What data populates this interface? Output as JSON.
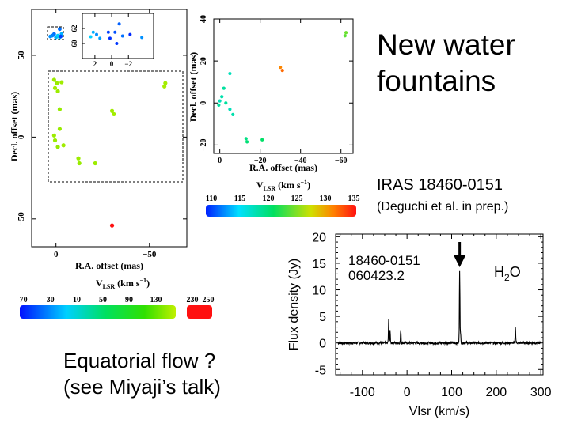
{
  "slide": {
    "title_line1": "New water",
    "title_line2": "fountains",
    "subtitle": "IRAS 18460-0151",
    "citation": "(Deguchi et al. in prep.)",
    "caption_line1": "Equatorial flow ?",
    "caption_line2": "(see Miyaji’s talk)"
  },
  "chart_data": [
    {
      "type": "scatter",
      "id": "map-large",
      "xlabel": "R.A. offset (mas)",
      "ylabel": "Decl. offset (mas)",
      "xlim": [
        13,
        -70
      ],
      "ylim": [
        -67,
        78
      ],
      "xticks": [
        {
          "v": 0,
          "label": "0"
        },
        {
          "v": -50,
          "label": "−50"
        }
      ],
      "yticks": [
        {
          "v": 50,
          "label": "50"
        },
        {
          "v": 0,
          "label": "0"
        },
        {
          "v": -50,
          "label": "−50"
        }
      ],
      "colorbar": {
        "label": "V",
        "label_sub": "LSR",
        "label_unit": "(km s",
        "label_exp": "−1",
        "label_close": ")",
        "ticks": [
          "-70",
          "-30",
          "10",
          "50",
          "90",
          "130",
          "230",
          "250"
        ],
        "ranges": [
          [
            -70,
            130
          ],
          [
            230,
            250
          ]
        ]
      },
      "points": [
        {
          "x": 1,
          "y": 35,
          "v": 120
        },
        {
          "x": 0.5,
          "y": 30,
          "v": 121
        },
        {
          "x": -1,
          "y": 28,
          "v": 120
        },
        {
          "x": -0.5,
          "y": 33,
          "v": 119
        },
        {
          "x": -3,
          "y": 33.5,
          "v": 121
        },
        {
          "x": -2,
          "y": 17,
          "v": 118
        },
        {
          "x": -2,
          "y": 5,
          "v": 119
        },
        {
          "x": 1,
          "y": 1,
          "v": 120
        },
        {
          "x": 0.5,
          "y": -2,
          "v": 119
        },
        {
          "x": -1,
          "y": -6,
          "v": 118
        },
        {
          "x": -4,
          "y": -5,
          "v": 121
        },
        {
          "x": -12,
          "y": -13,
          "v": 120
        },
        {
          "x": -12.5,
          "y": -16,
          "v": 119
        },
        {
          "x": -21,
          "y": -16,
          "v": 120
        },
        {
          "x": -30,
          "y": 16,
          "v": 121
        },
        {
          "x": -31,
          "y": 14,
          "v": 122
        },
        {
          "x": -58,
          "y": 31,
          "v": 123
        },
        {
          "x": -58.5,
          "y": 33,
          "v": 122
        },
        {
          "x": -30,
          "y": -54,
          "v": 240
        }
      ],
      "cluster": [
        {
          "x": 1,
          "y": 63,
          "v": -40
        },
        {
          "x": 2,
          "y": 62,
          "v": -35
        },
        {
          "x": 3,
          "y": 61.5,
          "v": -30
        },
        {
          "x": 0,
          "y": 61,
          "v": -20
        },
        {
          "x": -1,
          "y": 62,
          "v": -10
        },
        {
          "x": -2,
          "y": 61,
          "v": 0
        },
        {
          "x": -3,
          "y": 63,
          "v": -20
        },
        {
          "x": -2,
          "y": 66,
          "v": -40
        },
        {
          "x": -2.5,
          "y": 61.5,
          "v": -55
        }
      ]
    },
    {
      "type": "scatter",
      "id": "map-inset",
      "xlim": [
        3.5,
        -5
      ],
      "ylim": [
        58,
        64
      ],
      "xticks": [
        {
          "v": 2,
          "label": "2"
        },
        {
          "v": 0,
          "label": "0"
        },
        {
          "v": -2,
          "label": "−2"
        }
      ],
      "yticks": [
        {
          "v": 62,
          "label": "62"
        },
        {
          "v": 60,
          "label": "60"
        }
      ],
      "points": [
        {
          "x": 2.5,
          "y": 60.9,
          "v": -10
        },
        {
          "x": 2.2,
          "y": 61.5,
          "v": -20
        },
        {
          "x": 1.8,
          "y": 61.2,
          "v": -30
        },
        {
          "x": 1.4,
          "y": 60.7,
          "v": -25
        },
        {
          "x": 0.4,
          "y": 61.5,
          "v": -55
        },
        {
          "x": 0.2,
          "y": 60.7,
          "v": -60
        },
        {
          "x": -0.4,
          "y": 61.5,
          "v": -50
        },
        {
          "x": -0.9,
          "y": 62.6,
          "v": -45
        },
        {
          "x": -0.6,
          "y": 60.0,
          "v": -58
        },
        {
          "x": -1.3,
          "y": 61.0,
          "v": -40
        },
        {
          "x": -2.2,
          "y": 61.2,
          "v": -62
        },
        {
          "x": -3.6,
          "y": 60.8,
          "v": -30
        }
      ]
    },
    {
      "type": "scatter",
      "id": "map-zoom",
      "xlabel": "R.A. offset (mas)",
      "ylabel": "Decl. offset (mas)",
      "xlim": [
        3,
        -66
      ],
      "ylim": [
        -24,
        40
      ],
      "xticks": [
        {
          "v": 0,
          "label": "0"
        },
        {
          "v": -20,
          "label": "−20"
        },
        {
          "v": -40,
          "label": "−40"
        },
        {
          "v": -60,
          "label": "−60"
        }
      ],
      "yticks": [
        {
          "v": 40,
          "label": "40"
        },
        {
          "v": 20,
          "label": "20"
        },
        {
          "v": 0,
          "label": "0"
        },
        {
          "v": -20,
          "label": "−20"
        }
      ],
      "colorbar": {
        "label": "V",
        "label_sub": "LSR",
        "label_unit": "(km s",
        "label_exp": "−1",
        "label_close": ")",
        "ticks": [
          "110",
          "115",
          "120",
          "125",
          "130",
          "135"
        ],
        "range": [
          110,
          135
        ]
      },
      "points": [
        {
          "x": -62,
          "y": 32,
          "v": 124
        },
        {
          "x": -62.5,
          "y": 33.5,
          "v": 124.5
        },
        {
          "x": -30,
          "y": 17,
          "v": 131
        },
        {
          "x": -31,
          "y": 15.5,
          "v": 132
        },
        {
          "x": -5,
          "y": 14,
          "v": 118
        },
        {
          "x": -2,
          "y": 7,
          "v": 119
        },
        {
          "x": -1,
          "y": 3,
          "v": 118.5
        },
        {
          "x": 0,
          "y": 1,
          "v": 118
        },
        {
          "x": -3,
          "y": 0,
          "v": 119
        },
        {
          "x": -5,
          "y": -3,
          "v": 118
        },
        {
          "x": 0.5,
          "y": -1,
          "v": 119
        },
        {
          "x": -6.5,
          "y": -5.5,
          "v": 118.5
        },
        {
          "x": -13,
          "y": -17,
          "v": 120
        },
        {
          "x": -13.5,
          "y": -18.5,
          "v": 120.5
        },
        {
          "x": -21,
          "y": -17.5,
          "v": 121
        }
      ]
    },
    {
      "type": "line",
      "id": "spectrum",
      "xlabel": "Vlsr (km/s)",
      "ylabel": "Flux density (Jy)",
      "xlim": [
        -160,
        305
      ],
      "ylim": [
        -6,
        20.5
      ],
      "xticks": [
        -100,
        0,
        100,
        200,
        300
      ],
      "yticks": [
        20,
        15,
        10,
        5,
        0,
        -5
      ],
      "annotation_source": "18460-0151",
      "annotation_date": "060423.2",
      "molecule": "H",
      "molecule_sub": "2",
      "molecule_end": "O",
      "arrow_at": 118,
      "lines": [
        {
          "v": -41,
          "peak": 4.4
        },
        {
          "v": -38,
          "peak": 2.2
        },
        {
          "v": -14,
          "peak": 2.6
        },
        {
          "v": 118,
          "peak": 13.7
        },
        {
          "v": 120,
          "peak": 1.6
        },
        {
          "v": 243,
          "peak": 3.1
        }
      ]
    }
  ]
}
